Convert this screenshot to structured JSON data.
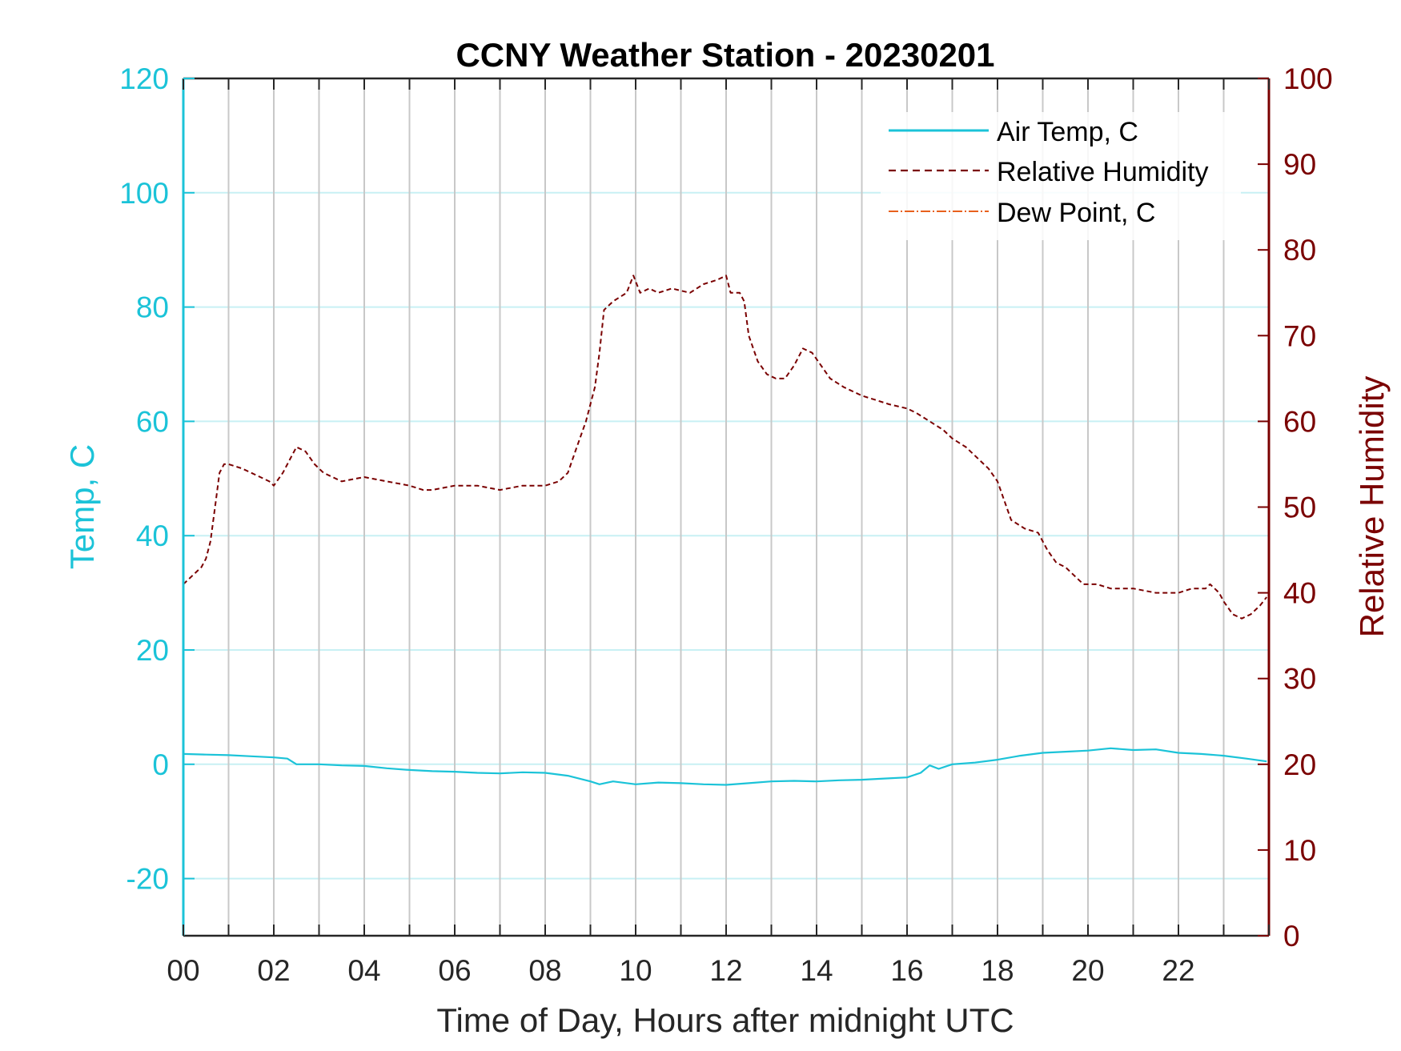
{
  "chart_data": {
    "type": "line",
    "title": "CCNY Weather Station - 20230201",
    "xlabel": "Time of Day, Hours after midnight UTC",
    "ylabel_left": "Temp, C",
    "ylabel_right": "Relative Humidity",
    "xlim": [
      0,
      24
    ],
    "ylim_left": [
      -30,
      120
    ],
    "ylim_right": [
      0,
      100
    ],
    "x_ticks": [
      0,
      2,
      4,
      6,
      8,
      10,
      12,
      14,
      16,
      18,
      20,
      22
    ],
    "x_tick_labels": [
      "00",
      "02",
      "04",
      "06",
      "08",
      "10",
      "12",
      "14",
      "16",
      "18",
      "20",
      "22"
    ],
    "y_left_ticks": [
      -20,
      0,
      20,
      40,
      60,
      80,
      100,
      120
    ],
    "y_left_tick_labels": [
      "-20",
      "0",
      "20",
      "40",
      "60",
      "80",
      "100",
      "120"
    ],
    "y_right_ticks": [
      0,
      10,
      20,
      30,
      40,
      50,
      60,
      70,
      80,
      90,
      100
    ],
    "y_right_tick_labels": [
      "0",
      "10",
      "20",
      "30",
      "40",
      "50",
      "60",
      "70",
      "80",
      "90",
      "100"
    ],
    "grid": true,
    "legend_position": "top-right",
    "colors": {
      "temp": "#1bc3d8",
      "humidity": "#7a0000",
      "dewpoint": "#e8601c",
      "grid_vertical": "#c8c8c8",
      "grid_horizontal": "#c8f0f4",
      "axis_dark": "#262626"
    },
    "series": [
      {
        "name": "Air Temp, C",
        "axis": "left",
        "style": "solid",
        "x": [
          0,
          0.5,
          1,
          1.5,
          2,
          2.3,
          2.5,
          3,
          3.5,
          4,
          4.5,
          5,
          5.5,
          6,
          6.5,
          7,
          7.5,
          8,
          8.5,
          9,
          9.2,
          9.5,
          10,
          10.5,
          11,
          11.5,
          12,
          12.5,
          13,
          13.5,
          14,
          14.5,
          15,
          15.5,
          16,
          16.3,
          16.5,
          16.7,
          17,
          17.5,
          18,
          18.5,
          19,
          19.5,
          20,
          20.5,
          21,
          21.5,
          22,
          22.5,
          23,
          23.5,
          23.95
        ],
        "y": [
          1.8,
          1.7,
          1.6,
          1.4,
          1.2,
          1.0,
          0.0,
          0.0,
          -0.2,
          -0.3,
          -0.7,
          -1.0,
          -1.2,
          -1.3,
          -1.5,
          -1.6,
          -1.4,
          -1.5,
          -2.0,
          -3.0,
          -3.5,
          -3.0,
          -3.5,
          -3.2,
          -3.3,
          -3.5,
          -3.6,
          -3.3,
          -3.0,
          -2.9,
          -3.0,
          -2.8,
          -2.7,
          -2.5,
          -2.3,
          -1.5,
          -0.2,
          -0.8,
          0.0,
          0.3,
          0.8,
          1.5,
          2.0,
          2.2,
          2.4,
          2.8,
          2.5,
          2.6,
          2.0,
          1.8,
          1.5,
          1.0,
          0.5
        ]
      },
      {
        "name": "Relative Humidity",
        "axis": "right",
        "style": "dashed",
        "x": [
          0,
          0.2,
          0.4,
          0.5,
          0.6,
          0.7,
          0.8,
          0.9,
          1.0,
          1.3,
          1.5,
          1.7,
          1.9,
          2.0,
          2.2,
          2.4,
          2.5,
          2.7,
          2.9,
          3.1,
          3.3,
          3.5,
          4.0,
          4.5,
          5.0,
          5.3,
          5.5,
          6.0,
          6.5,
          7.0,
          7.5,
          8.0,
          8.3,
          8.5,
          8.7,
          8.9,
          9.0,
          9.1,
          9.2,
          9.3,
          9.5,
          9.8,
          9.95,
          10.1,
          10.3,
          10.5,
          10.8,
          11.2,
          11.5,
          11.8,
          12.0,
          12.1,
          12.3,
          12.4,
          12.5,
          12.7,
          12.9,
          13.1,
          13.3,
          13.5,
          13.7,
          13.9,
          14.1,
          14.3,
          14.6,
          15.0,
          15.3,
          15.6,
          16.0,
          16.2,
          16.5,
          16.8,
          17.0,
          17.3,
          17.6,
          17.8,
          18.0,
          18.3,
          18.6,
          18.9,
          19.1,
          19.3,
          19.5,
          19.7,
          19.9,
          20.2,
          20.5,
          21.0,
          21.5,
          22.0,
          22.3,
          22.6,
          22.7,
          22.8,
          22.9,
          23.0,
          23.2,
          23.4,
          23.6,
          23.8,
          23.95
        ],
        "y": [
          41,
          42,
          43,
          44,
          46,
          50,
          54,
          55,
          55,
          54.5,
          54,
          53.5,
          53,
          52.5,
          54,
          56,
          57,
          56.5,
          55,
          54,
          53.5,
          53,
          53.5,
          53,
          52.5,
          52,
          52,
          52.5,
          52.5,
          52,
          52.5,
          52.5,
          53,
          54,
          57,
          60,
          62,
          64,
          68,
          73,
          74,
          75,
          77,
          75,
          75.5,
          75,
          75.5,
          75,
          76,
          76.5,
          77,
          75,
          75,
          74,
          70,
          67,
          65.5,
          65,
          65,
          66.5,
          68.5,
          68,
          66.5,
          65,
          64,
          63,
          62.5,
          62,
          61.5,
          61,
          60,
          59,
          58,
          57,
          55.5,
          54.5,
          53,
          48.5,
          47.5,
          47,
          45,
          43.5,
          43,
          42,
          41,
          41,
          40.5,
          40.5,
          40,
          40,
          40.5,
          40.5,
          41,
          40.5,
          40,
          39,
          37.5,
          37,
          37.5,
          38.5,
          39.5
        ]
      },
      {
        "name": "Dew Point, C",
        "axis": "left",
        "style": "dashdot",
        "x": [],
        "y": []
      }
    ]
  }
}
